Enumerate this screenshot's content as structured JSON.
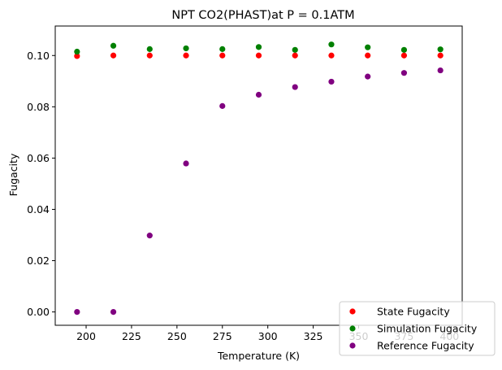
{
  "chart_data": {
    "type": "scatter",
    "title": "NPT CO2(PHAST)at P = 0.1ATM",
    "xlabel": "Temperature (K)",
    "ylabel": "Fugacity",
    "xlim": [
      183,
      407
    ],
    "ylim": [
      -0.0052,
      0.1115
    ],
    "xticks": [
      200,
      225,
      250,
      275,
      300,
      325,
      350,
      375,
      400
    ],
    "yticks": [
      0.0,
      0.02,
      0.04,
      0.06,
      0.08,
      0.1
    ],
    "ytick_labels": [
      "0.00",
      "0.02",
      "0.04",
      "0.06",
      "0.08",
      "0.10"
    ],
    "grid": false,
    "legend_position": "lower-right",
    "series": [
      {
        "name": "State Fugacity",
        "color": "#ff0000",
        "x": [
          195,
          215,
          235,
          255,
          275,
          295,
          315,
          335,
          355,
          375,
          395
        ],
        "y": [
          0.0998,
          0.1,
          0.1,
          0.1,
          0.1,
          0.1,
          0.1,
          0.1,
          0.1,
          0.1,
          0.1
        ]
      },
      {
        "name": "Simulation Fugacity",
        "color": "#008000",
        "x": [
          195,
          215,
          235,
          255,
          275,
          295,
          315,
          335,
          355,
          375,
          395
        ],
        "y": [
          0.1015,
          0.1038,
          0.1025,
          0.1028,
          0.1025,
          0.1033,
          0.1022,
          0.1043,
          0.1032,
          0.1022,
          0.1024
        ]
      },
      {
        "name": "Reference Fugacity",
        "color": "#800080",
        "x": [
          195,
          215,
          235,
          255,
          275,
          295,
          315,
          335,
          355,
          375,
          395
        ],
        "y": [
          0.0,
          0.0,
          0.0298,
          0.0579,
          0.0803,
          0.0847,
          0.0877,
          0.0898,
          0.0918,
          0.0932,
          0.0942
        ]
      }
    ]
  }
}
